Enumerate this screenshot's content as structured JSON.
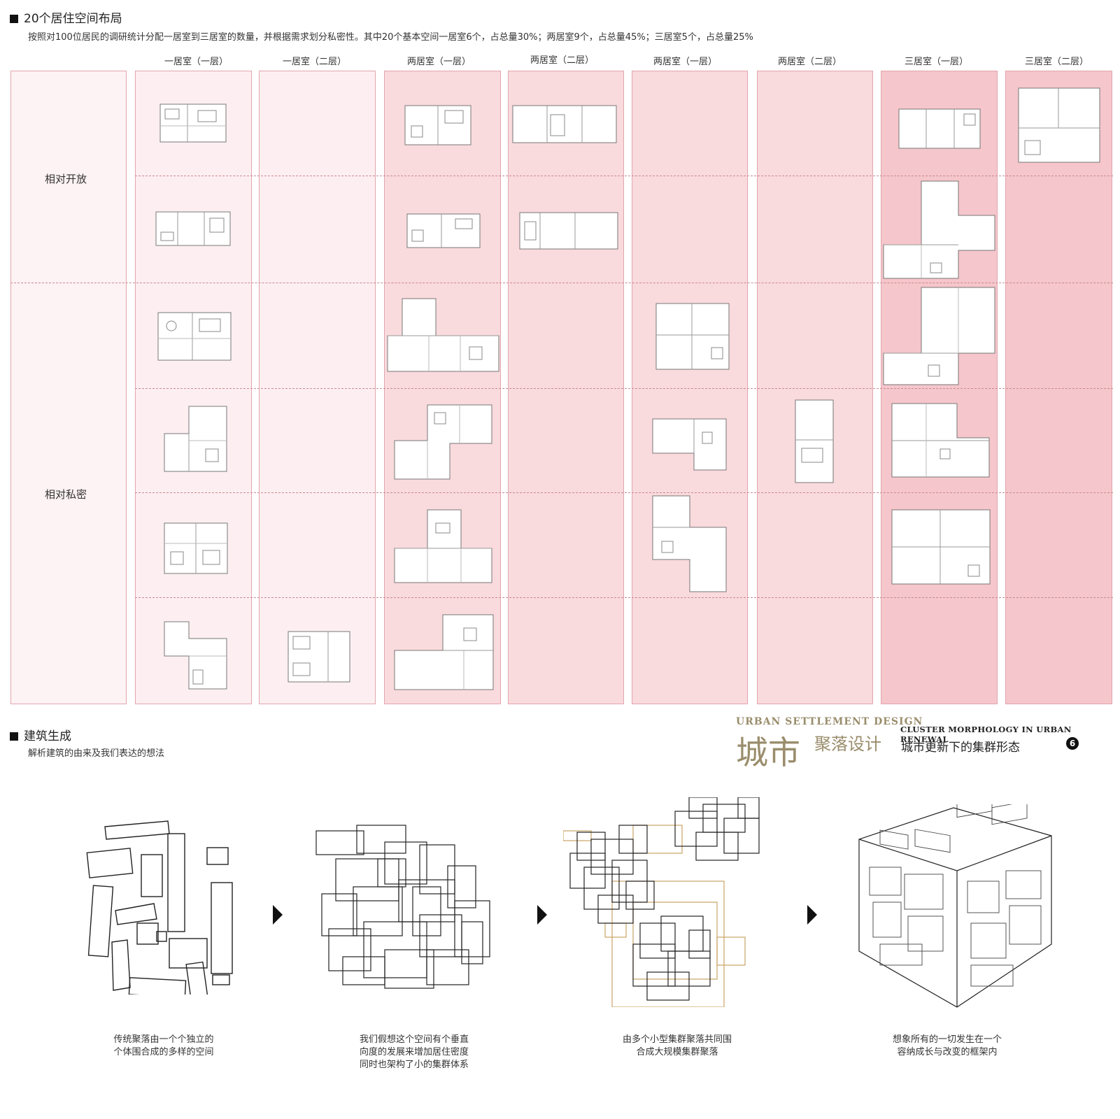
{
  "section1": {
    "title": "20个居住空间布局",
    "description": "按照对100位居民的调研统计分配一居室到三居室的数量，并根据需求划分私密性。其中20个基本空间一居室6个，占总量30%；两居室9个，占总量45%；三居室5个，占总量25%"
  },
  "columns": [
    {
      "label": "一居室（一层）",
      "color": "#fdeff1"
    },
    {
      "label": "一居室（二层）",
      "color": "#fdeff1"
    },
    {
      "label": "两居室（一层）",
      "color": "#f9dadd"
    },
    {
      "label": "两居室（二层）",
      "color": "#f9dadd"
    },
    {
      "label": "两居室（一层）",
      "color": "#f9dadd"
    },
    {
      "label": "两居室（二层）",
      "color": "#f9dadd"
    },
    {
      "label": "三居室（一层）",
      "color": "#f5c6cb"
    },
    {
      "label": "三居室（二层）",
      "color": "#f5c6cb"
    }
  ],
  "row_labels": {
    "open": "相对开放",
    "private": "相对私密"
  },
  "section2": {
    "title": "建筑生成",
    "description": "解析建筑的由来及我们表达的想法"
  },
  "brand": {
    "en_title": "URBAN SETTLEMENT DESIGN",
    "cn_big": "城市",
    "cn_mid": "聚落设计",
    "en_sub": "CLUSTER MORPHOLOGY IN URBAN RENEWAL",
    "cn_sub": "城市更新下的集群形态",
    "page_number": "6",
    "accent": "#9a8d6c"
  },
  "steps": [
    {
      "caption_line1": "传统聚落由一个个独立的",
      "caption_line2": "个体围合成的多样的空间",
      "caption_line3": ""
    },
    {
      "caption_line1": "我们假想这个空间有个垂直",
      "caption_line2": "向度的发展来增加居住密度",
      "caption_line3": "同时也架构了小的集群体系"
    },
    {
      "caption_line1": "由多个小型集群聚落共同围",
      "caption_line2": "合成大规模集群聚落",
      "caption_line3": ""
    },
    {
      "caption_line1": "想象所有的一切发生在一个",
      "caption_line2": "容纳成长与改变的框架内",
      "caption_line3": ""
    }
  ]
}
